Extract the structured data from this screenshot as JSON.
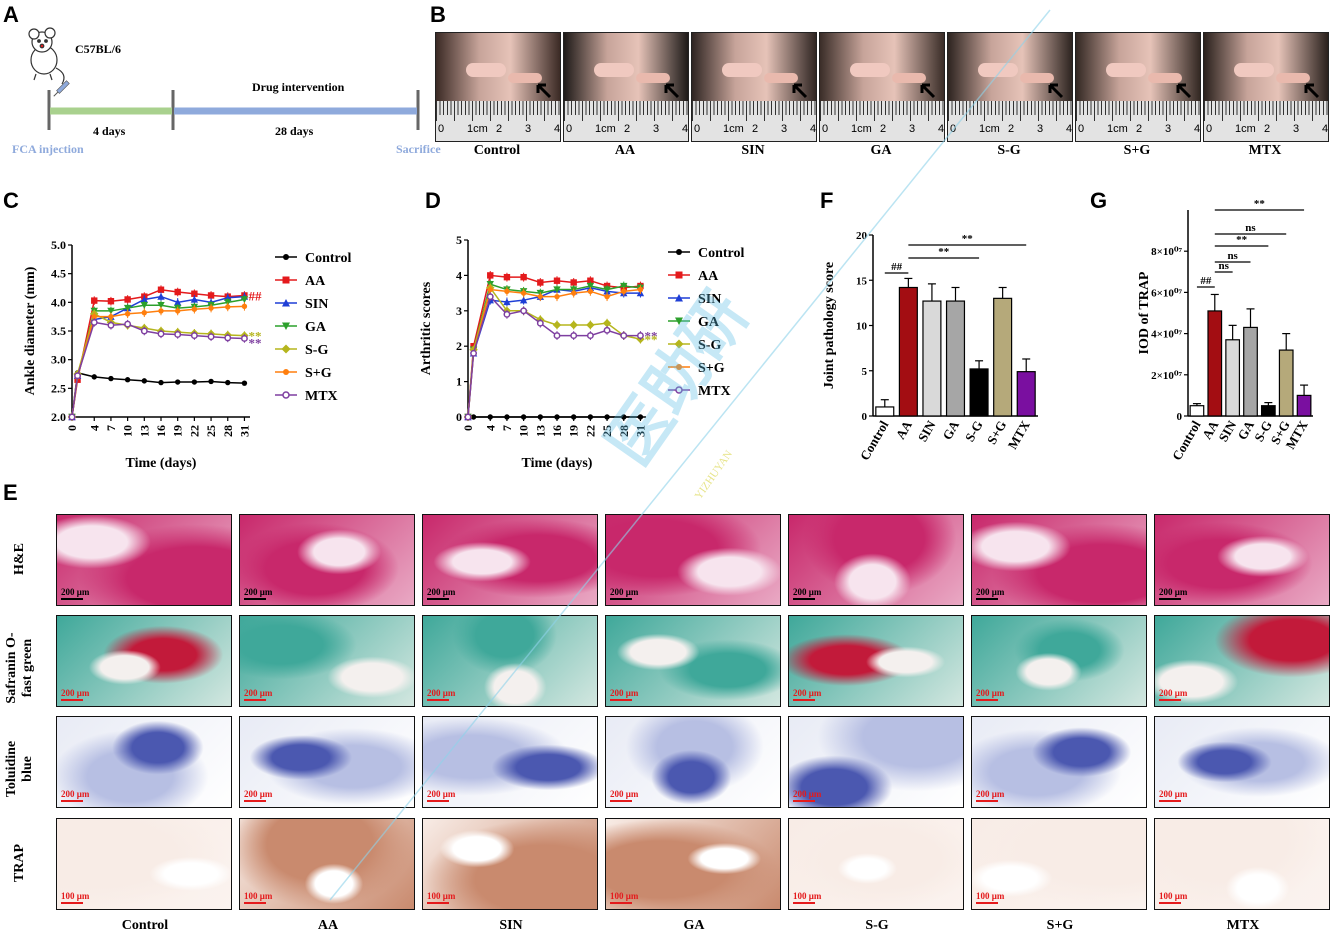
{
  "panel_letters": {
    "a": "A",
    "b": "B",
    "c": "C",
    "d": "D",
    "e": "E",
    "f": "F",
    "g": "G"
  },
  "panel_a": {
    "strain": "C57BL/6",
    "phase1_duration": "4 days",
    "phase2_title": "Drug intervention",
    "phase2_duration": "28 days",
    "start_label": "FCA injection",
    "end_label": "Sacrifice",
    "colors": {
      "phase1": "#a9d18e",
      "phase2": "#8faadc",
      "annotation": "#8faadc"
    }
  },
  "panel_b": {
    "groups": [
      "Control",
      "AA",
      "SIN",
      "GA",
      "S-G",
      "S+G",
      "MTX"
    ],
    "ruler_labels": [
      "0",
      "1cm",
      "2",
      "3",
      "4"
    ]
  },
  "legend_groups": [
    {
      "name": "Control",
      "color": "#000000",
      "marker": "circle-filled"
    },
    {
      "name": "AA",
      "color": "#e41a1c",
      "marker": "square"
    },
    {
      "name": "SIN",
      "color": "#1f3fd6",
      "marker": "triangle"
    },
    {
      "name": "GA",
      "color": "#2ca02c",
      "marker": "triangle-down"
    },
    {
      "name": "S-G",
      "color": "#b5b51d",
      "marker": "diamond"
    },
    {
      "name": "S+G",
      "color": "#ff7f0e",
      "marker": "circle-filled"
    },
    {
      "name": "MTX",
      "color": "#7e3fa0",
      "marker": "circle-open"
    }
  ],
  "chart_data": [
    {
      "id": "C",
      "type": "line",
      "xlabel": "Time (days)",
      "ylabel": "Ankle diameter (mm)",
      "x": [
        0,
        1,
        4,
        7,
        10,
        13,
        16,
        19,
        22,
        25,
        28,
        31
      ],
      "xticks": [
        "0",
        "4",
        "7",
        "10",
        "13",
        "16",
        "19",
        "22",
        "25",
        "28",
        "31"
      ],
      "ylim": [
        2.0,
        5.0
      ],
      "yticks": [
        "2.0",
        "2.5",
        "3.0",
        "3.5",
        "4.0",
        "4.5",
        "5.0"
      ],
      "series": [
        {
          "name": "Control",
          "values": [
            2.0,
            2.77,
            2.7,
            2.67,
            2.65,
            2.63,
            2.6,
            2.61,
            2.61,
            2.62,
            2.6,
            2.59
          ]
        },
        {
          "name": "AA",
          "values": [
            2.0,
            2.65,
            4.03,
            4.02,
            4.05,
            4.1,
            4.22,
            4.18,
            4.15,
            4.12,
            4.1,
            4.12
          ]
        },
        {
          "name": "SIN",
          "values": [
            2.0,
            2.72,
            3.7,
            3.75,
            3.9,
            4.05,
            4.1,
            4.0,
            4.05,
            4.0,
            4.08,
            4.1
          ]
        },
        {
          "name": "GA",
          "values": [
            2.0,
            2.7,
            3.85,
            3.85,
            3.9,
            3.95,
            3.95,
            3.9,
            3.92,
            3.95,
            4.0,
            4.05
          ]
        },
        {
          "name": "S-G",
          "values": [
            2.0,
            2.75,
            3.8,
            3.65,
            3.6,
            3.55,
            3.5,
            3.48,
            3.46,
            3.45,
            3.43,
            3.42
          ]
        },
        {
          "name": "S+G",
          "values": [
            2.0,
            2.7,
            3.75,
            3.75,
            3.8,
            3.82,
            3.85,
            3.85,
            3.88,
            3.9,
            3.92,
            3.93
          ]
        },
        {
          "name": "MTX",
          "values": [
            2.0,
            2.72,
            3.65,
            3.6,
            3.62,
            3.5,
            3.45,
            3.44,
            3.42,
            3.4,
            3.38,
            3.37
          ]
        }
      ],
      "annotations": [
        {
          "text": "##",
          "series": "AA",
          "color": "#e41a1c"
        },
        {
          "text": "**",
          "series": "S-G",
          "color": "#b5b51d"
        },
        {
          "text": "**",
          "series": "MTX",
          "color": "#7e3fa0"
        }
      ]
    },
    {
      "id": "D",
      "type": "line",
      "xlabel": "Time (days)",
      "ylabel": "Arthritic scores",
      "x": [
        0,
        1,
        4,
        7,
        10,
        13,
        16,
        19,
        22,
        25,
        28,
        31
      ],
      "xticks": [
        "0",
        "4",
        "7",
        "10",
        "13",
        "16",
        "19",
        "22",
        "25",
        "28",
        "31"
      ],
      "ylim": [
        0,
        5
      ],
      "yticks": [
        "0",
        "1",
        "2",
        "3",
        "4",
        "5"
      ],
      "series": [
        {
          "name": "Control",
          "values": [
            0,
            0,
            0,
            0,
            0,
            0,
            0,
            0,
            0,
            0,
            0,
            0
          ]
        },
        {
          "name": "AA",
          "values": [
            0,
            2.0,
            4.0,
            3.95,
            3.95,
            3.8,
            3.85,
            3.8,
            3.85,
            3.7,
            3.65,
            3.7
          ]
        },
        {
          "name": "SIN",
          "values": [
            0,
            1.8,
            3.3,
            3.25,
            3.3,
            3.4,
            3.6,
            3.55,
            3.65,
            3.55,
            3.5,
            3.5
          ]
        },
        {
          "name": "GA",
          "values": [
            0,
            1.9,
            3.75,
            3.6,
            3.55,
            3.5,
            3.6,
            3.6,
            3.7,
            3.6,
            3.7,
            3.65
          ]
        },
        {
          "name": "S-G",
          "values": [
            0,
            1.9,
            3.65,
            3.0,
            3.0,
            2.75,
            2.6,
            2.6,
            2.6,
            2.65,
            2.3,
            2.2
          ]
        },
        {
          "name": "S+G",
          "values": [
            0,
            1.8,
            3.6,
            3.55,
            3.5,
            3.4,
            3.4,
            3.5,
            3.55,
            3.4,
            3.55,
            3.6
          ]
        },
        {
          "name": "MTX",
          "values": [
            0,
            1.8,
            3.4,
            2.9,
            3.0,
            2.65,
            2.3,
            2.3,
            2.3,
            2.45,
            2.3,
            2.3
          ]
        }
      ],
      "annotations": [
        {
          "text": "**",
          "series": "MTX",
          "color": "#7e3fa0"
        },
        {
          "text": "**",
          "series": "S-G",
          "color": "#b5b51d"
        }
      ]
    },
    {
      "id": "F",
      "type": "bar",
      "ylabel": "Joint pathology score",
      "categories": [
        "Control",
        "AA",
        "SIN",
        "GA",
        "S-G",
        "S+G",
        "MTX"
      ],
      "values": [
        1.0,
        14.2,
        12.7,
        12.7,
        5.2,
        13.0,
        4.9
      ],
      "errors": [
        0.8,
        1.0,
        1.9,
        1.5,
        0.9,
        1.2,
        1.4
      ],
      "colors": [
        "#ffffff",
        "#a30d12",
        "#d9d9d9",
        "#a6a6a6",
        "#000000",
        "#b5a97a",
        "#7a0fa0"
      ],
      "ylim": [
        0,
        20
      ],
      "yticks": [
        "0",
        "5",
        "10",
        "15",
        "20"
      ],
      "brackets": [
        {
          "text": "##",
          "from": "Control",
          "to": "AA"
        },
        {
          "text": "**",
          "from": "AA",
          "to": "S-G"
        },
        {
          "text": "**",
          "from": "AA",
          "to": "MTX"
        }
      ]
    },
    {
      "id": "G",
      "type": "bar",
      "ylabel": "IOD of TRAP",
      "categories": [
        "Control",
        "AA",
        "SIN",
        "GA",
        "S-G",
        "S+G",
        "MTX"
      ],
      "values": [
        5000000,
        51000000,
        37000000,
        43000000,
        5000000,
        32000000,
        10000000
      ],
      "errors": [
        1000000,
        8000000,
        7000000,
        9000000,
        1500000,
        8000000,
        5000000
      ],
      "colors": [
        "#ffffff",
        "#a30d12",
        "#d9d9d9",
        "#a6a6a6",
        "#000000",
        "#b5a97a",
        "#7a0fa0"
      ],
      "ylim": [
        0,
        100000000
      ],
      "yticks": [
        "0",
        "2×10⁰⁷",
        "4×10⁰⁷",
        "6×10⁰⁷",
        "8×10⁰⁷"
      ],
      "brackets": [
        {
          "text": "##",
          "from": "Control",
          "to": "AA"
        },
        {
          "text": "ns",
          "from": "AA",
          "to": "SIN"
        },
        {
          "text": "ns",
          "from": "AA",
          "to": "GA"
        },
        {
          "text": "**",
          "from": "AA",
          "to": "S-G"
        },
        {
          "text": "ns",
          "from": "AA",
          "to": "S+G"
        },
        {
          "text": "**",
          "from": "AA",
          "to": "MTX"
        }
      ]
    }
  ],
  "panel_e": {
    "row_labels": [
      "H&E",
      "Safranin O-\nfast green",
      "Toluidine\nblue",
      "TRAP"
    ],
    "col_labels": [
      "Control",
      "AA",
      "SIN",
      "GA",
      "S-G",
      "S+G",
      "MTX"
    ],
    "scale_labels": [
      "200 μm",
      "200 μm",
      "200 μm",
      "100 μm"
    ],
    "stains": [
      {
        "base": "#e9a9c4",
        "tissue": "#c8286b",
        "accent": "#f7e4ee",
        "scale_color": "#000000"
      },
      {
        "base": "#d3e7e0",
        "tissue": "#3fa89a",
        "accent": "#c21a3a",
        "scale_color": "#e41a1c"
      },
      {
        "base": "#e8ebf5",
        "tissue": "#4b58b0",
        "accent": "#b7bfe3",
        "scale_color": "#e41a1c"
      },
      {
        "base": "#f8ece6",
        "tissue": "#c98a6e",
        "accent": "#9b4f2e",
        "scale_color": "#e41a1c"
      }
    ]
  },
  "watermark": {
    "text": "医助研",
    "sub": "YIZHUYAN"
  }
}
